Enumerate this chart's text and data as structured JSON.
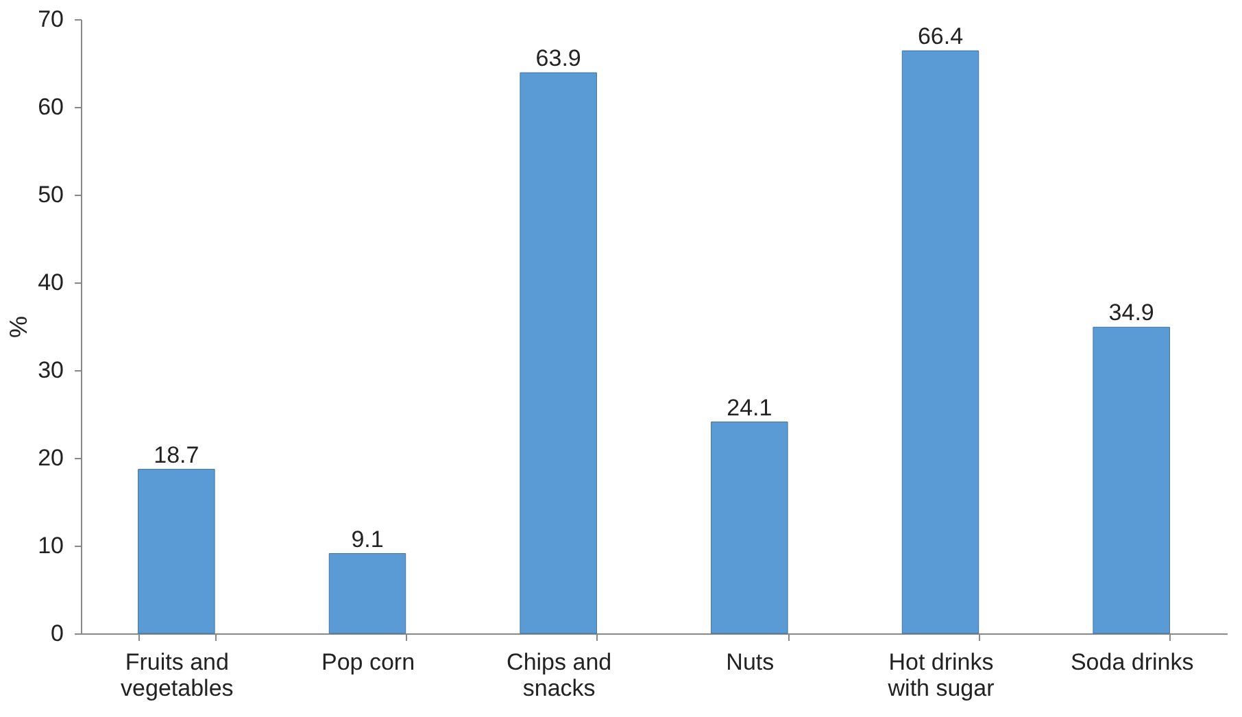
{
  "chart_data": {
    "type": "bar",
    "ylabel": "%",
    "categories": [
      "Fruits and vegetables",
      "Pop corn",
      "Chips and snacks",
      "Nuts",
      "Hot drinks with sugar",
      "Soda drinks"
    ],
    "values": [
      18.7,
      9.1,
      63.9,
      24.1,
      66.4,
      34.9
    ],
    "color": "#5b9bd5",
    "data_labels": true,
    "grid": false,
    "ylim": [
      0,
      70
    ],
    "yticks": [
      0,
      10,
      20,
      30,
      40,
      50,
      60,
      70
    ]
  }
}
